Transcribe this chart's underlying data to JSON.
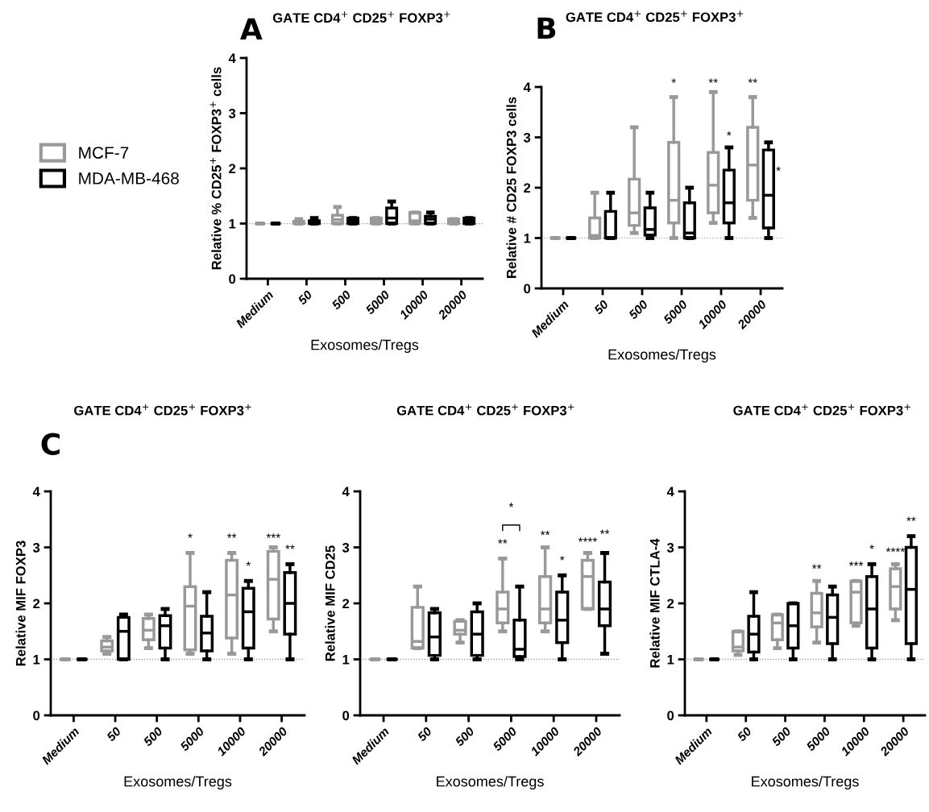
{
  "chart_data": [
    {
      "type": "box",
      "title": "GATE CD4$^{+}$ CD25$^{+}$ FOXP3$^{+}$",
      "xlabel": "Exosomes/Tregs",
      "ylabel": "Relative % CD25$^{+}$ FOXP3$^{+}$ cells",
      "categories": [
        "Medium",
        "50",
        "500",
        "5000",
        "10000",
        "20000"
      ],
      "ylim": [
        0,
        4
      ],
      "yticks": [
        0,
        1,
        2,
        3,
        4
      ],
      "legend": "left",
      "grid": false,
      "ref_lines": [
        {
          "axis": "y",
          "value": 1,
          "color": "#999999",
          "line_style": "dotted"
        }
      ],
      "annotations": [
        "A"
      ],
      "series": [
        {
          "name": "MCF-7",
          "color": "#999999",
          "boxes": [
            {
              "low": 1,
              "q1": 1,
              "median": 1,
              "q3": 1,
              "high": 1
            },
            {
              "low": 1,
              "q1": 1,
              "median": 1,
              "q3": 1.04,
              "high": 1.08
            },
            {
              "low": 1,
              "q1": 1,
              "median": 1.07,
              "q3": 1.15,
              "high": 1.3
            },
            {
              "low": 1,
              "q1": 1,
              "median": 1.05,
              "q3": 1.1,
              "high": 1.1
            },
            {
              "low": 1,
              "q1": 1,
              "median": 1.05,
              "q3": 1.2,
              "high": 1.2
            },
            {
              "low": 1,
              "q1": 1,
              "median": 1.05,
              "q3": 1.08,
              "high": 1.08
            }
          ]
        },
        {
          "name": "MDA-MB-468",
          "color": "#000000",
          "boxes": [
            {
              "low": 1,
              "q1": 1,
              "median": 1,
              "q3": 1,
              "high": 1
            },
            {
              "low": 1,
              "q1": 1,
              "median": 1.02,
              "q3": 1.05,
              "high": 1.1
            },
            {
              "low": 1,
              "q1": 1,
              "median": 1.05,
              "q3": 1.1,
              "high": 1.1
            },
            {
              "low": 1,
              "q1": 1,
              "median": 1.1,
              "q3": 1.28,
              "high": 1.4
            },
            {
              "low": 1,
              "q1": 1,
              "median": 1.08,
              "q3": 1.13,
              "high": 1.2
            },
            {
              "low": 1,
              "q1": 1,
              "median": 1.05,
              "q3": 1.1,
              "high": 1.1
            }
          ]
        }
      ]
    },
    {
      "type": "box",
      "title": "GATE CD4$^{+}$ CD25$^{+}$ FOXP3$^{+}$",
      "xlabel": "Exosomes/Tregs",
      "ylabel": "Relative # CD25 FOXP3 cells",
      "categories": [
        "Medium",
        "50",
        "500",
        "5000",
        "10000",
        "20000"
      ],
      "ylim": [
        0,
        4
      ],
      "yticks": [
        0,
        1,
        2,
        3,
        4
      ],
      "grid": false,
      "ref_lines": [
        {
          "axis": "y",
          "value": 1,
          "color": "#999999",
          "line_style": "dotted"
        }
      ],
      "annotations": [
        "B",
        "*",
        "**",
        "*",
        "**",
        "*"
      ],
      "series": [
        {
          "color": "#999999",
          "boxes": [
            {
              "low": 1,
              "q1": 1,
              "median": 1,
              "q3": 1,
              "high": 1
            },
            {
              "low": 1,
              "q1": 1,
              "median": 1.05,
              "q3": 1.4,
              "high": 1.9
            },
            {
              "low": 1.1,
              "q1": 1.25,
              "median": 1.5,
              "q3": 2.17,
              "high": 3.2
            },
            {
              "low": 1,
              "q1": 1.3,
              "median": 1.75,
              "q3": 2.9,
              "high": 3.8
            },
            {
              "low": 1.3,
              "q1": 1.5,
              "median": 2.05,
              "q3": 2.7,
              "high": 3.9
            },
            {
              "low": 1.4,
              "q1": 1.75,
              "median": 2.45,
              "q3": 3.2,
              "high": 3.8
            }
          ]
        },
        {
          "color": "#000000",
          "boxes": [
            {
              "low": 1,
              "q1": 1,
              "median": 1,
              "q3": 1,
              "high": 1
            },
            {
              "low": 1,
              "q1": 1,
              "median": 1,
              "q3": 1.53,
              "high": 1.9
            },
            {
              "low": 1,
              "q1": 1.06,
              "median": 1.17,
              "q3": 1.6,
              "high": 1.9
            },
            {
              "low": 1,
              "q1": 1,
              "median": 1.1,
              "q3": 1.7,
              "high": 2
            },
            {
              "low": 1,
              "q1": 1.3,
              "median": 1.7,
              "q3": 2.35,
              "high": 2.8
            },
            {
              "low": 1,
              "q1": 1.2,
              "median": 1.85,
              "q3": 2.75,
              "high": 2.9
            }
          ]
        }
      ]
    },
    {
      "type": "box",
      "title": "GATE CD4$^{+}$ CD25$^{+}$ FOXP3$^{+}$",
      "xlabel": "Exosomes/Tregs",
      "ylabel": "Relative MIF FOXP3",
      "categories": [
        "Medium",
        "50",
        "500",
        "5000",
        "10000",
        "20000"
      ],
      "ylim": [
        0,
        4
      ],
      "yticks": [
        0,
        1,
        2,
        3,
        4
      ],
      "grid": false,
      "ref_lines": [
        {
          "axis": "y",
          "value": 1,
          "color": "#999999",
          "line_style": "dotted"
        }
      ],
      "annotations": [
        "C",
        "*",
        "**",
        "*",
        "***",
        "**"
      ],
      "series": [
        {
          "color": "#999999",
          "boxes": [
            {
              "low": 1,
              "q1": 1,
              "median": 1,
              "q3": 1,
              "high": 1
            },
            {
              "low": 1.1,
              "q1": 1.15,
              "median": 1.22,
              "q3": 1.33,
              "high": 1.4
            },
            {
              "low": 1.2,
              "q1": 1.35,
              "median": 1.52,
              "q3": 1.73,
              "high": 1.8
            },
            {
              "low": 1.1,
              "q1": 1.17,
              "median": 1.95,
              "q3": 2.3,
              "high": 2.9
            },
            {
              "low": 1.1,
              "q1": 1.38,
              "median": 2.15,
              "q3": 2.77,
              "high": 2.9
            },
            {
              "low": 1.5,
              "q1": 1.72,
              "median": 2.43,
              "q3": 2.93,
              "high": 3
            }
          ]
        },
        {
          "color": "#000000",
          "boxes": [
            {
              "low": 1,
              "q1": 1,
              "median": 1,
              "q3": 1,
              "high": 1
            },
            {
              "low": 1,
              "q1": 1,
              "median": 1.5,
              "q3": 1.75,
              "high": 1.8
            },
            {
              "low": 1,
              "q1": 1.2,
              "median": 1.6,
              "q3": 1.78,
              "high": 1.9
            },
            {
              "low": 1,
              "q1": 1.15,
              "median": 1.47,
              "q3": 1.77,
              "high": 2.2
            },
            {
              "low": 1,
              "q1": 1.2,
              "median": 1.85,
              "q3": 2.27,
              "high": 2.4
            },
            {
              "low": 1,
              "q1": 1.45,
              "median": 2,
              "q3": 2.55,
              "high": 2.7
            }
          ]
        }
      ]
    },
    {
      "type": "box",
      "title": "GATE CD4$^{+}$ CD25$^{+}$ FOXP3$^{+}$",
      "xlabel": "Exosomes/Tregs",
      "ylabel": "Relative MIF CD25",
      "categories": [
        "Medium",
        "50",
        "500",
        "5000",
        "10000",
        "20000"
      ],
      "ylim": [
        0,
        4
      ],
      "yticks": [
        0,
        1,
        2,
        3,
        4
      ],
      "grid": false,
      "ref_lines": [
        {
          "axis": "y",
          "value": 1,
          "color": "#999999",
          "line_style": "dotted"
        }
      ],
      "annotations": [
        "*",
        "**",
        "**",
        "*",
        "****",
        "**"
      ],
      "series": [
        {
          "color": "#999999",
          "boxes": [
            {
              "low": 1,
              "q1": 1,
              "median": 1,
              "q3": 1,
              "high": 1
            },
            {
              "low": 1.2,
              "q1": 1.2,
              "median": 1.32,
              "q3": 1.93,
              "high": 2.3
            },
            {
              "low": 1.3,
              "q1": 1.45,
              "median": 1.52,
              "q3": 1.68,
              "high": 1.7
            },
            {
              "low": 1.5,
              "q1": 1.65,
              "median": 1.9,
              "q3": 2.2,
              "high": 2.8
            },
            {
              "low": 1.5,
              "q1": 1.65,
              "median": 1.9,
              "q3": 2.48,
              "high": 3
            },
            {
              "low": 1.9,
              "q1": 1.9,
              "median": 2.48,
              "q3": 2.77,
              "high": 2.9
            }
          ]
        },
        {
          "color": "#000000",
          "boxes": [
            {
              "low": 1,
              "q1": 1,
              "median": 1,
              "q3": 1,
              "high": 1
            },
            {
              "low": 1,
              "q1": 1.07,
              "median": 1.4,
              "q3": 1.83,
              "high": 1.9
            },
            {
              "low": 1,
              "q1": 1.07,
              "median": 1.45,
              "q3": 1.85,
              "high": 2
            },
            {
              "low": 1,
              "q1": 1.05,
              "median": 1.18,
              "q3": 1.7,
              "high": 2.3
            },
            {
              "low": 1,
              "q1": 1.3,
              "median": 1.7,
              "q3": 2.2,
              "high": 2.5
            },
            {
              "low": 1.1,
              "q1": 1.6,
              "median": 1.9,
              "q3": 2.38,
              "high": 2.9
            }
          ]
        }
      ]
    },
    {
      "type": "box",
      "title": "GATE CD4$^{+}$ CD25$^{+}$ FOXP3$^{+}$",
      "xlabel": "Exosomes/Tregs",
      "ylabel": "Relative MIF CTLA-4",
      "categories": [
        "Medium",
        "50",
        "500",
        "5000",
        "10000",
        "20000"
      ],
      "ylim": [
        0,
        4
      ],
      "yticks": [
        0,
        1,
        2,
        3,
        4
      ],
      "grid": false,
      "ref_lines": [
        {
          "axis": "y",
          "value": 1,
          "color": "#999999",
          "line_style": "dotted"
        }
      ],
      "annotations": [
        "**",
        "***",
        "*",
        "****",
        "**"
      ],
      "series": [
        {
          "color": "#999999",
          "boxes": [
            {
              "low": 1,
              "q1": 1,
              "median": 1,
              "q3": 1,
              "high": 1
            },
            {
              "low": 1.08,
              "q1": 1.15,
              "median": 1.22,
              "q3": 1.5,
              "high": 1.5
            },
            {
              "low": 1.2,
              "q1": 1.35,
              "median": 1.65,
              "q3": 1.8,
              "high": 1.8
            },
            {
              "low": 1.3,
              "q1": 1.58,
              "median": 1.83,
              "q3": 2.18,
              "high": 2.4
            },
            {
              "low": 1.6,
              "q1": 1.65,
              "median": 2.2,
              "q3": 2.4,
              "high": 2.4
            },
            {
              "low": 1.7,
              "q1": 1.9,
              "median": 2.3,
              "q3": 2.62,
              "high": 2.7
            }
          ]
        },
        {
          "color": "#000000",
          "boxes": [
            {
              "low": 1,
              "q1": 1,
              "median": 1,
              "q3": 1,
              "high": 1
            },
            {
              "low": 1,
              "q1": 1.13,
              "median": 1.45,
              "q3": 1.77,
              "high": 2.2
            },
            {
              "low": 1,
              "q1": 1.2,
              "median": 1.6,
              "q3": 2,
              "high": 2
            },
            {
              "low": 1,
              "q1": 1.28,
              "median": 1.75,
              "q3": 2.15,
              "high": 2.3
            },
            {
              "low": 1,
              "q1": 1.2,
              "median": 1.9,
              "q3": 2.48,
              "high": 2.7
            },
            {
              "low": 1,
              "q1": 1.28,
              "median": 2.25,
              "q3": 3,
              "high": 3.2
            }
          ]
        }
      ]
    }
  ]
}
